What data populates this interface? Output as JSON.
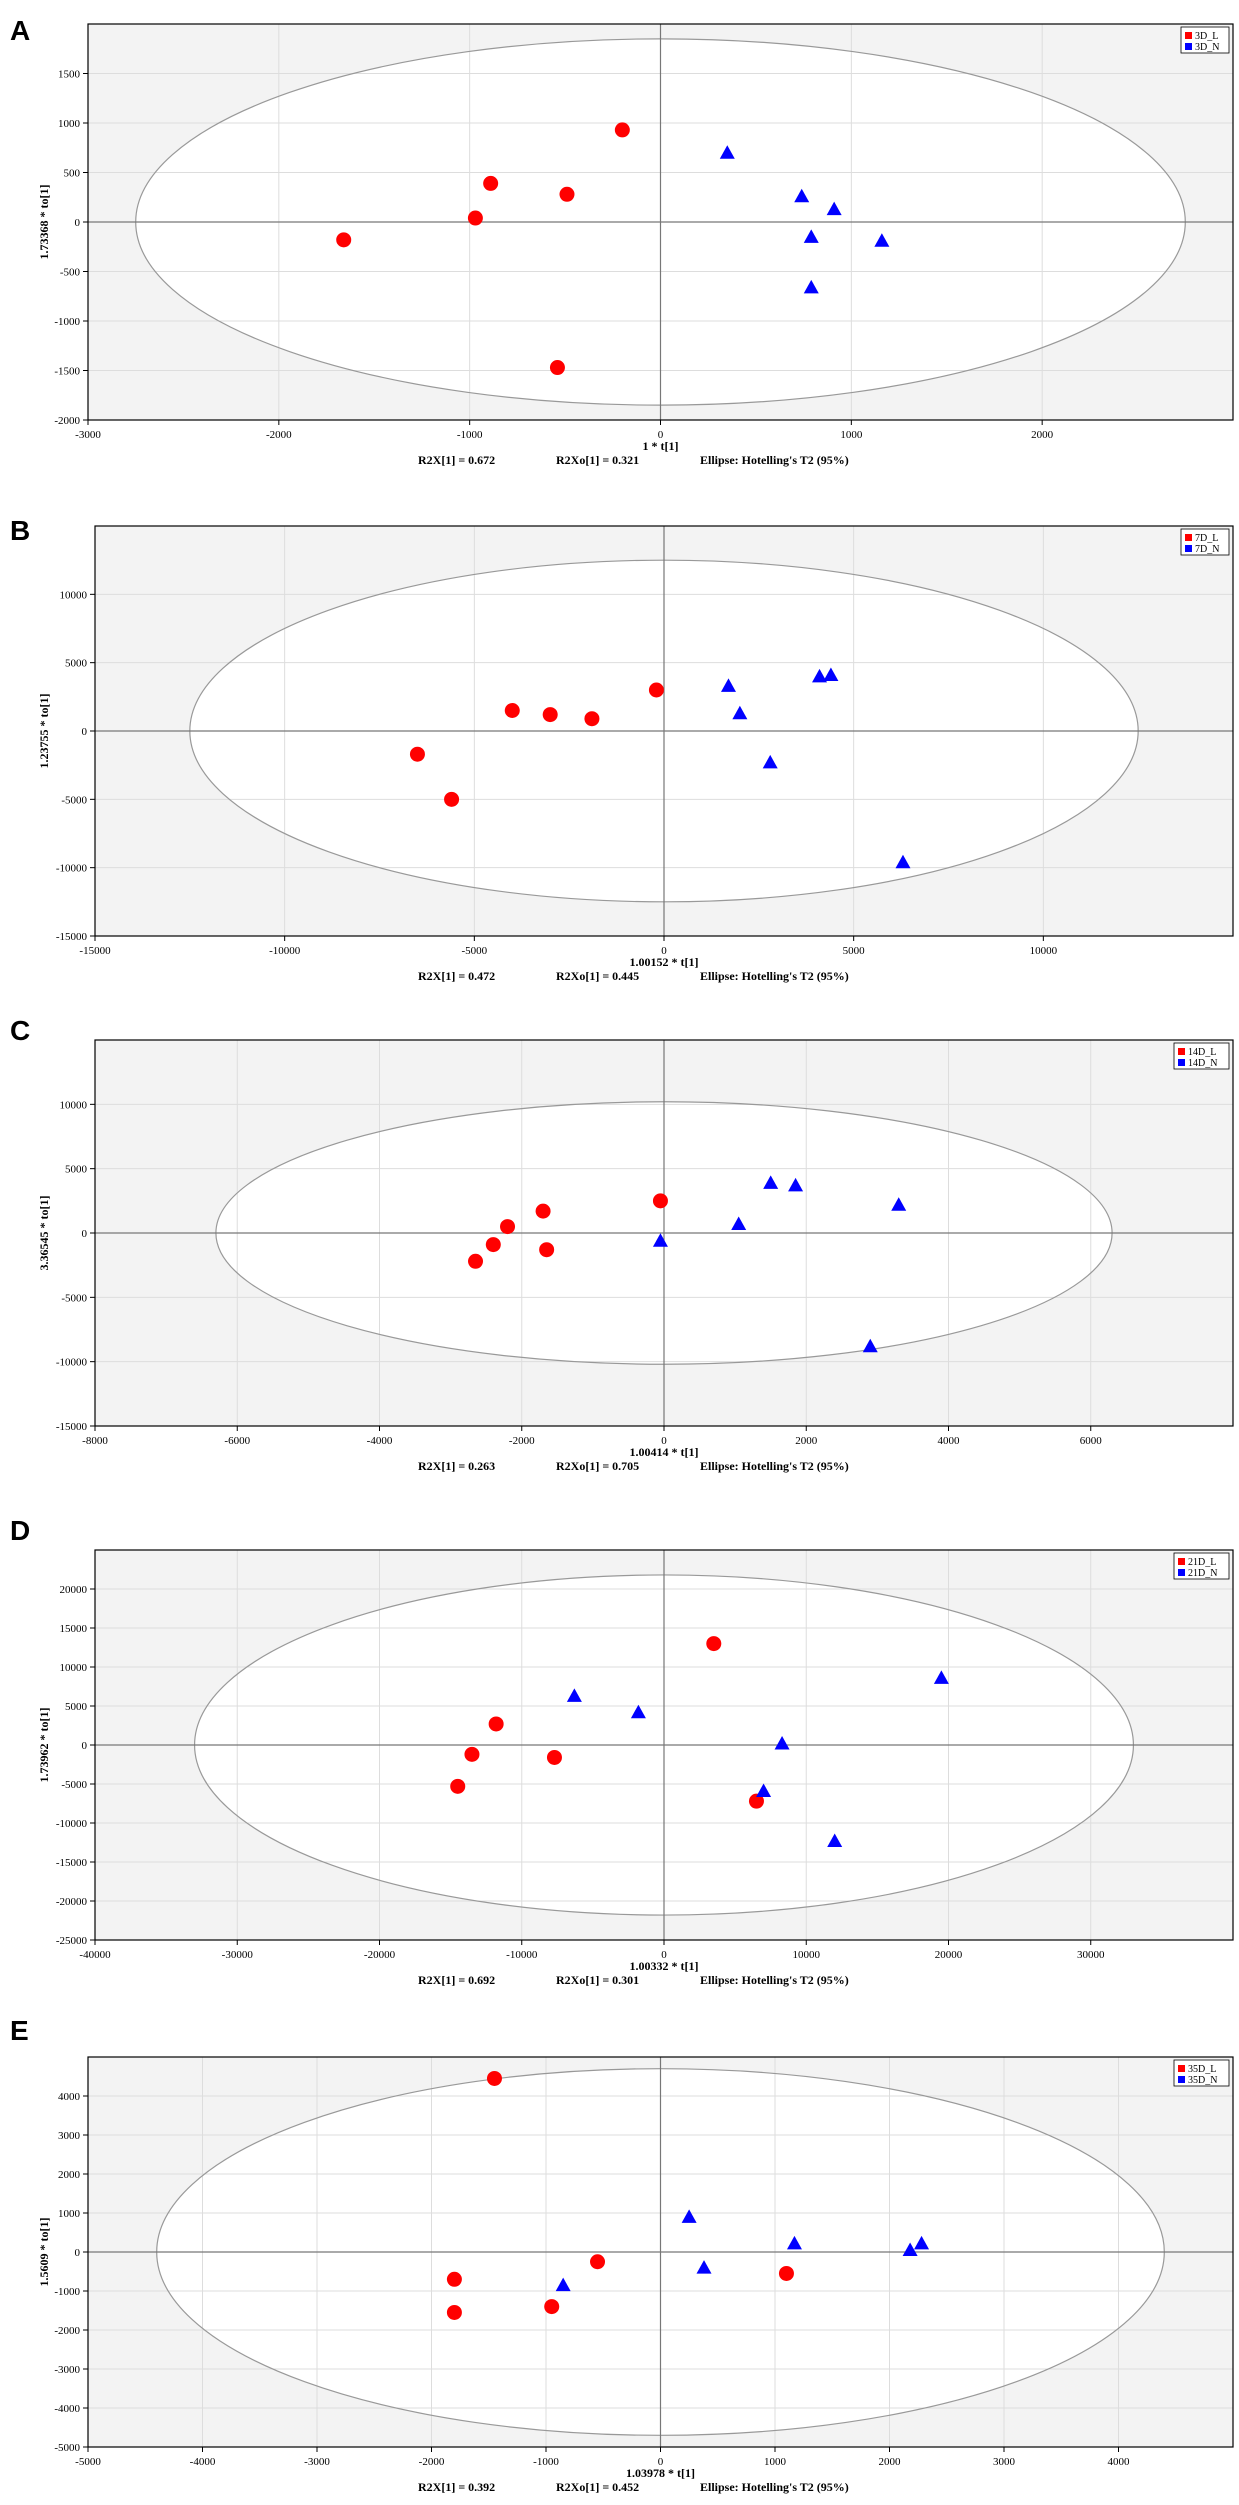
{
  "chart_data": [
    {
      "type": "scatter",
      "panel": "A",
      "xlabel": "1 * t[1]",
      "ylabel": "1.73368 * to[1]",
      "xlim": [
        -3000,
        3000
      ],
      "ylim": [
        -2000,
        2000
      ],
      "xticks": [
        -3000,
        -2000,
        -1000,
        0,
        1000,
        2000
      ],
      "yticks": [
        -2000,
        -1500,
        -1000,
        -500,
        0,
        500,
        1000,
        1500
      ],
      "ellipse": {
        "rx": 2750,
        "ry": 1850
      },
      "stats": {
        "r2x": "R2X[1] = 0.672",
        "r2xo": "R2Xo[1] = 0.321",
        "ellipse": "Ellipse: Hotelling's T2 (95%)"
      },
      "series": [
        {
          "name": "3D_L",
          "color": "#ff0000",
          "marker": "circle",
          "points": [
            [
              -1660,
              -180
            ],
            [
              -970,
              40
            ],
            [
              -890,
              390
            ],
            [
              -540,
              -1470
            ],
            [
              -490,
              280
            ],
            [
              -200,
              930
            ]
          ]
        },
        {
          "name": "3D_N",
          "color": "#0000ff",
          "marker": "triangle",
          "points": [
            [
              350,
              700
            ],
            [
              740,
              260
            ],
            [
              790,
              -150
            ],
            [
              790,
              -660
            ],
            [
              910,
              130
            ],
            [
              1160,
              -190
            ]
          ]
        }
      ]
    },
    {
      "type": "scatter",
      "panel": "B",
      "xlabel": "1.00152 * t[1]",
      "ylabel": "1.23755 * to[1]",
      "xlim": [
        -15000,
        15000
      ],
      "ylim": [
        -15000,
        15000
      ],
      "xticks": [
        -15000,
        -10000,
        -5000,
        0,
        5000,
        10000
      ],
      "yticks": [
        -15000,
        -10000,
        -5000,
        0,
        5000,
        10000
      ],
      "ellipse": {
        "rx": 12500,
        "ry": 12500
      },
      "stats": {
        "r2x": "R2X[1] = 0.472",
        "r2xo": "R2Xo[1] = 0.445",
        "ellipse": "Ellipse: Hotelling's T2 (95%)"
      },
      "series": [
        {
          "name": "7D_L",
          "color": "#ff0000",
          "marker": "circle",
          "points": [
            [
              -6500,
              -1700
            ],
            [
              -5600,
              -5000
            ],
            [
              -4000,
              1500
            ],
            [
              -3000,
              1200
            ],
            [
              -1900,
              900
            ],
            [
              -200,
              3000
            ]
          ]
        },
        {
          "name": "7D_N",
          "color": "#0000ff",
          "marker": "triangle",
          "points": [
            [
              1700,
              3300
            ],
            [
              2000,
              1300
            ],
            [
              2800,
              -2300
            ],
            [
              4100,
              4000
            ],
            [
              4400,
              4100
            ],
            [
              6300,
              -9600
            ]
          ]
        }
      ]
    },
    {
      "type": "scatter",
      "panel": "C",
      "xlabel": "1.00414 * t[1]",
      "ylabel": "3.36545 * to[1]",
      "xlim": [
        -8000,
        8000
      ],
      "ylim": [
        -15000,
        15000
      ],
      "xticks": [
        -8000,
        -6000,
        -4000,
        -2000,
        0,
        2000,
        4000,
        6000
      ],
      "yticks": [
        -15000,
        -10000,
        -5000,
        0,
        5000,
        10000
      ],
      "ellipse": {
        "rx": 6300,
        "ry": 10200
      },
      "stats": {
        "r2x": "R2X[1] = 0.263",
        "r2xo": "R2Xo[1] = 0.705",
        "ellipse": "Ellipse: Hotelling's T2 (95%)"
      },
      "series": [
        {
          "name": "14D_L",
          "color": "#ff0000",
          "marker": "circle",
          "points": [
            [
              -2650,
              -2200
            ],
            [
              -2400,
              -900
            ],
            [
              -2200,
              500
            ],
            [
              -1700,
              1700
            ],
            [
              -1650,
              -1300
            ],
            [
              -50,
              2500
            ]
          ]
        },
        {
          "name": "14D_N",
          "color": "#0000ff",
          "marker": "triangle",
          "points": [
            [
              -50,
              -600
            ],
            [
              1050,
              700
            ],
            [
              1500,
              3900
            ],
            [
              1850,
              3700
            ],
            [
              2900,
              -8800
            ],
            [
              3300,
              2200
            ]
          ]
        }
      ]
    },
    {
      "type": "scatter",
      "panel": "D",
      "xlabel": "1.00332 * t[1]",
      "ylabel": "1.73962 * to[1]",
      "xlim": [
        -40000,
        40000
      ],
      "ylim": [
        -25000,
        25000
      ],
      "xticks": [
        -40000,
        -30000,
        -20000,
        -10000,
        0,
        10000,
        20000,
        30000
      ],
      "yticks": [
        -25000,
        -20000,
        -15000,
        -10000,
        -5000,
        0,
        5000,
        10000,
        15000,
        20000
      ],
      "ellipse": {
        "rx": 33000,
        "ry": 21800
      },
      "stats": {
        "r2x": "R2X[1] = 0.692",
        "r2xo": "R2Xo[1] = 0.301",
        "ellipse": "Ellipse: Hotelling's T2 (95%)"
      },
      "series": [
        {
          "name": "21D_L",
          "color": "#ff0000",
          "marker": "circle",
          "points": [
            [
              -14500,
              -5300
            ],
            [
              -13500,
              -1200
            ],
            [
              -11800,
              2700
            ],
            [
              -7700,
              -1600
            ],
            [
              3500,
              13000
            ],
            [
              6500,
              -7200
            ]
          ]
        },
        {
          "name": "21D_N",
          "color": "#0000ff",
          "marker": "triangle",
          "points": [
            [
              -6300,
              6300
            ],
            [
              -1800,
              4200
            ],
            [
              7000,
              -5900
            ],
            [
              8300,
              200
            ],
            [
              12000,
              -12300
            ],
            [
              19500,
              8600
            ]
          ]
        }
      ]
    },
    {
      "type": "scatter",
      "panel": "E",
      "xlabel": "1.03978 * t[1]",
      "ylabel": "1.5609 * to[1]",
      "xlim": [
        -5000,
        5000
      ],
      "ylim": [
        -5000,
        5000
      ],
      "xticks": [
        -5000,
        -4000,
        -3000,
        -2000,
        -1000,
        0,
        1000,
        2000,
        3000,
        4000
      ],
      "yticks": [
        -5000,
        -4000,
        -3000,
        -2000,
        -1000,
        0,
        1000,
        2000,
        3000,
        4000
      ],
      "ellipse": {
        "rx": 4400,
        "ry": 4700
      },
      "stats": {
        "r2x": "R2X[1] = 0.392",
        "r2xo": "R2Xo[1] = 0.452",
        "ellipse": "Ellipse: Hotelling's T2 (95%)"
      },
      "series": [
        {
          "name": "35D_L",
          "color": "#ff0000",
          "marker": "circle",
          "points": [
            [
              -1450,
              4450
            ],
            [
              -1800,
              -700
            ],
            [
              -1800,
              -1550
            ],
            [
              -950,
              -1400
            ],
            [
              -550,
              -250
            ],
            [
              1100,
              -550
            ]
          ]
        },
        {
          "name": "35D_N",
          "color": "#0000ff",
          "marker": "triangle",
          "points": [
            [
              -850,
              -850
            ],
            [
              250,
              900
            ],
            [
              380,
              -400
            ],
            [
              1170,
              220
            ],
            [
              2180,
              50
            ],
            [
              2280,
              220
            ]
          ]
        }
      ]
    }
  ]
}
